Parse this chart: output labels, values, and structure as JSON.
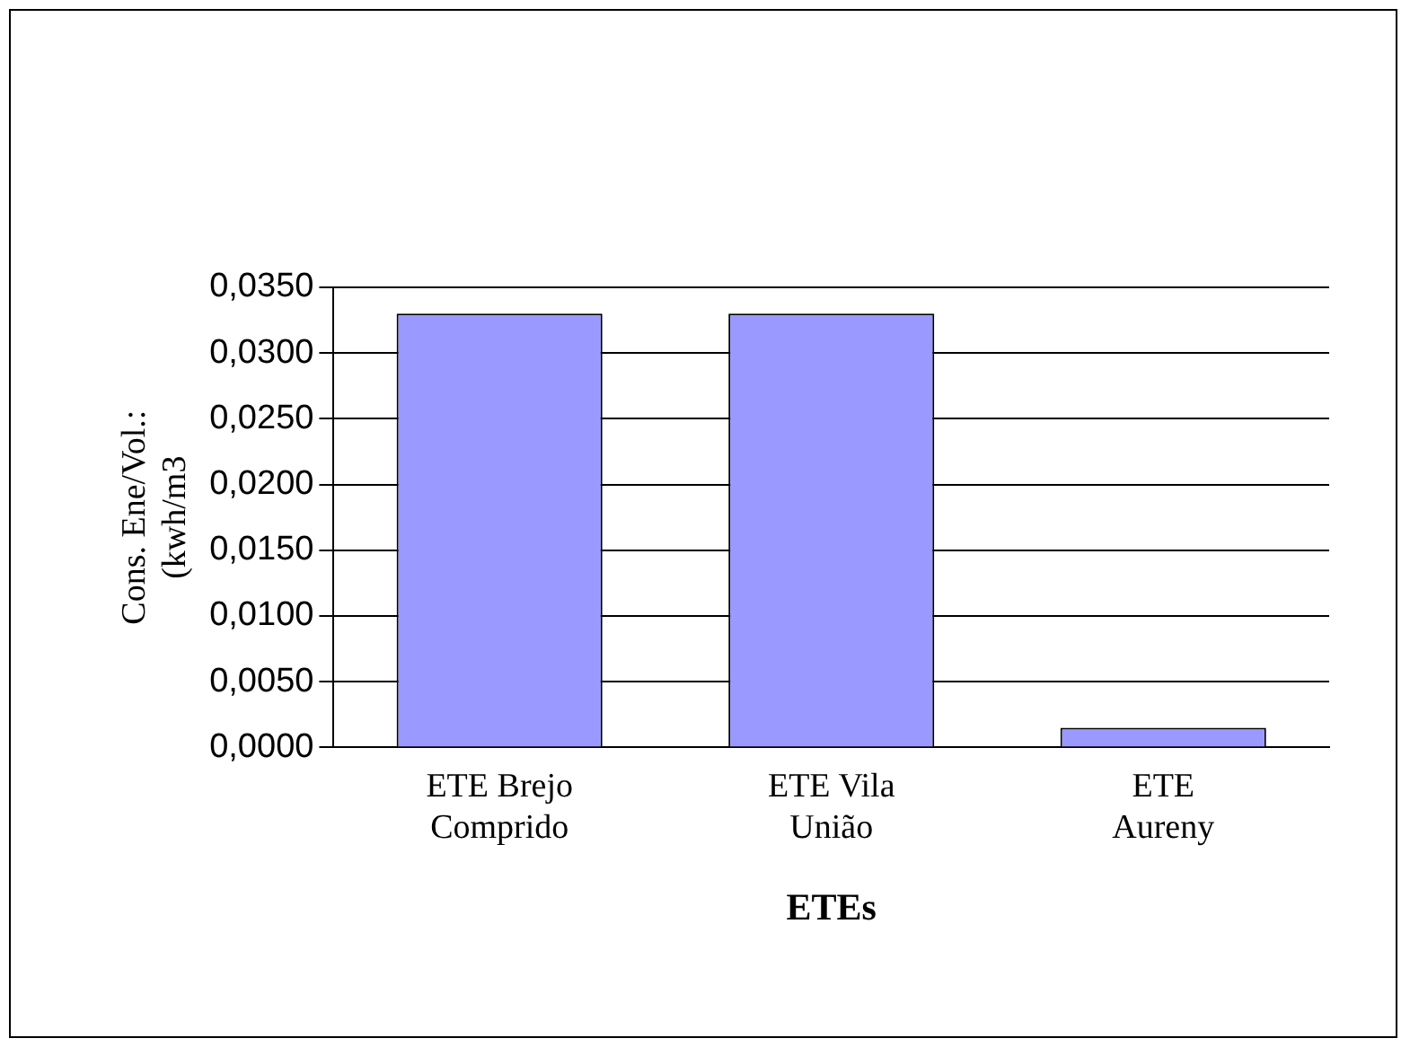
{
  "chart_data": {
    "type": "bar",
    "xlabel": "ETEs",
    "ylabel": "Cons. Ene/Vol.: (kwh/m3",
    "categories": [
      "ETE Brejo Comprido",
      "ETE Vila União",
      "ETE Aureny"
    ],
    "values": [
      0.033,
      0.033,
      0.0015
    ],
    "color": "#9999ff",
    "ylim": [
      0,
      0.035
    ],
    "yticks": [
      {
        "value": 0,
        "label": "0,0000"
      },
      {
        "value": 0.005,
        "label": "0,0050"
      },
      {
        "value": 0.01,
        "label": "0,0100"
      },
      {
        "value": 0.015,
        "label": "0,0150"
      },
      {
        "value": 0.02,
        "label": "0,0200"
      },
      {
        "value": 0.025,
        "label": "0,0250"
      },
      {
        "value": 0.03,
        "label": "0,0300"
      },
      {
        "value": 0.035,
        "label": "0,0350"
      }
    ],
    "grid": "y",
    "legend": false
  }
}
